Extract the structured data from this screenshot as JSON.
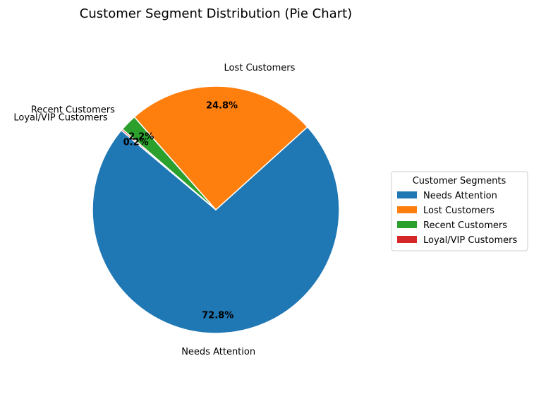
{
  "chart_data": {
    "type": "pie",
    "title": "Customer Segment Distribution (Pie Chart)",
    "slices": [
      {
        "label": "Needs Attention",
        "value": 72.8,
        "pct_label": "72.8%",
        "color": "#1f77b4"
      },
      {
        "label": "Lost Customers",
        "value": 24.8,
        "pct_label": "24.8%",
        "color": "#ff7f0e"
      },
      {
        "label": "Recent Customers",
        "value": 2.2,
        "pct_label": "2.2%",
        "color": "#2ca02c"
      },
      {
        "label": "Loyal/VIP Customers",
        "value": 0.2,
        "pct_label": "0.2%",
        "color": "#d62728"
      }
    ],
    "start_angle": 140,
    "direction": "counterclockwise",
    "legend": {
      "title": "Customer Segments",
      "placement": "center-right",
      "entries": [
        "Needs Attention",
        "Lost Customers",
        "Recent Customers",
        "Loyal/VIP Customers"
      ]
    }
  }
}
